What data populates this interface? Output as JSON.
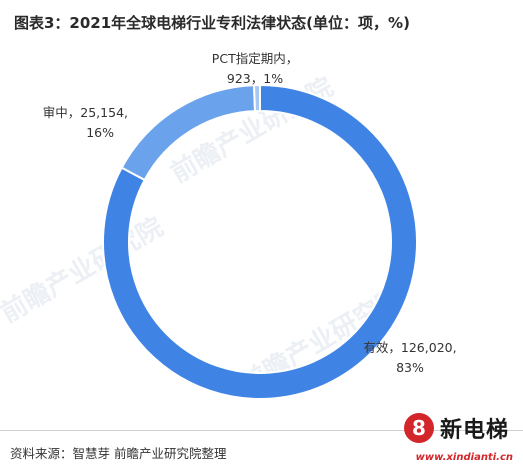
{
  "title": "图表3：2021年全球电梯行业专利法律状态(单位：项，%)",
  "source": "资料来源：智慧芽 前瞻产业研究院整理",
  "brand": {
    "mark": "8",
    "name": "新电梯",
    "url": "www.xindianti.cn"
  },
  "watermark": "前瞻产业研究院",
  "colors": {
    "有效": "#3f84e5",
    "审中": "#6aa3ec",
    "PCT指定期内": "#a6c8f2"
  },
  "chart_data": {
    "type": "pie",
    "donut": true,
    "title": "图表3：2021年全球电梯行业专利法律状态(单位：项，%)",
    "series": [
      {
        "name": "有效",
        "value": 126020,
        "percent": 83,
        "line1": "有效，126,020,",
        "line2": "83%"
      },
      {
        "name": "审中",
        "value": 25154,
        "percent": 16,
        "line1": "审中，25,154,",
        "line2": "16%"
      },
      {
        "name": "PCT指定期内",
        "value": 923,
        "percent": 1,
        "line1": "PCT指定期内，",
        "line2": "923，1%"
      }
    ]
  }
}
